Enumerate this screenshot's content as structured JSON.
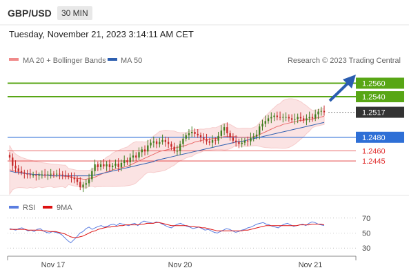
{
  "header": {
    "pair": "GBP/USD",
    "timeframe": "30 MIN"
  },
  "datetime": "Tuesday, November 21, 2023 3:14:11 AM CET",
  "credit": "Research © 2023 Trading Central",
  "legend": {
    "ma20": {
      "label": "MA 20 + Bollinger Bands",
      "color": "#f08a8a"
    },
    "ma50": {
      "label": "MA 50",
      "color": "#2e5fb0"
    }
  },
  "rsi_legend": {
    "rsi": {
      "label": "RSI",
      "color": "#5a7de0"
    },
    "ma": {
      "label": "9MA",
      "color": "#dd1111"
    }
  },
  "colors": {
    "resistance": "#58a615",
    "support": "#e03030",
    "pivot": "#2e6fd6",
    "current": "#333333",
    "up": "#3f7d1e",
    "down": "#c62828",
    "arrow": "#2a5db0"
  },
  "chart_data": [
    {
      "type": "candlestick",
      "ylim": [
        1.2395,
        1.2585
      ],
      "x_ticks": [
        "Nov 17",
        "Nov 20",
        "Nov 21"
      ],
      "levels": [
        {
          "value": 1.256,
          "label": "1.2560",
          "kind": "resistance"
        },
        {
          "value": 1.254,
          "label": "1.2540",
          "kind": "resistance"
        },
        {
          "value": 1.2517,
          "label": "1.2517",
          "kind": "current"
        },
        {
          "value": 1.248,
          "label": "1.2480",
          "kind": "pivot"
        },
        {
          "value": 1.246,
          "label": "1.2460",
          "kind": "support"
        },
        {
          "value": 1.2445,
          "label": "1.2445",
          "kind": "support"
        }
      ],
      "close": [
        1.245,
        1.2438,
        1.2434,
        1.243,
        1.2428,
        1.2426,
        1.2425,
        1.2424,
        1.2424,
        1.2423,
        1.2424,
        1.2425,
        1.2424,
        1.2425,
        1.2426,
        1.2425,
        1.2426,
        1.2425,
        1.2424,
        1.2423,
        1.2422,
        1.242,
        1.2418,
        1.2414,
        1.2406,
        1.241,
        1.2412,
        1.2418,
        1.243,
        1.244,
        1.2436,
        1.244,
        1.2437,
        1.244,
        1.2436,
        1.2438,
        1.2441,
        1.2436,
        1.2442,
        1.2446,
        1.2443,
        1.245,
        1.2453,
        1.245,
        1.2458,
        1.2462,
        1.2459,
        1.2468,
        1.2472,
        1.2474,
        1.247,
        1.2473,
        1.2476,
        1.2473,
        1.247,
        1.2466,
        1.246,
        1.246,
        1.247,
        1.2478,
        1.2483,
        1.2486,
        1.2488,
        1.2485,
        1.2483,
        1.248,
        1.2477,
        1.2474,
        1.2472,
        1.2476,
        1.2475,
        1.2482,
        1.249,
        1.2495,
        1.2486,
        1.248,
        1.2475,
        1.2473,
        1.247,
        1.2472,
        1.2475,
        1.2474,
        1.2479,
        1.2481,
        1.2484,
        1.2496,
        1.25,
        1.2504,
        1.2508,
        1.251,
        1.2512,
        1.251,
        1.2509,
        1.251,
        1.251,
        1.2508,
        1.2506,
        1.2507,
        1.251,
        1.2508,
        1.2505,
        1.2508,
        1.251,
        1.2508,
        1.2514,
        1.2518,
        1.2519,
        1.2517
      ],
      "ma20": [
        1.2432,
        1.2431,
        1.243,
        1.2429,
        1.2428,
        1.2427,
        1.2426,
        1.2426,
        1.2425,
        1.2425,
        1.2425,
        1.2424,
        1.2424,
        1.2424,
        1.2424,
        1.2423,
        1.2423,
        1.2423,
        1.2423,
        1.2422,
        1.2422,
        1.2421,
        1.242,
        1.2419,
        1.2419,
        1.2418,
        1.2418,
        1.2419,
        1.242,
        1.2421,
        1.2423,
        1.2425,
        1.2427,
        1.2429,
        1.243,
        1.2432,
        1.2433,
        1.2434,
        1.2435,
        1.2436,
        1.2437,
        1.2439,
        1.2441,
        1.2443,
        1.2445,
        1.2447,
        1.2449,
        1.2451,
        1.2453,
        1.2455,
        1.2457,
        1.2459,
        1.246,
        1.2461,
        1.2462,
        1.2463,
        1.2464,
        1.2465,
        1.2466,
        1.2467,
        1.2468,
        1.247,
        1.2471,
        1.2473,
        1.2474,
        1.2475,
        1.2476,
        1.2477,
        1.2477,
        1.2478,
        1.2478,
        1.2479,
        1.248,
        1.2481,
        1.2481,
        1.2481,
        1.2481,
        1.2481,
        1.248,
        1.248,
        1.248,
        1.248,
        1.248,
        1.2481,
        1.2482,
        1.2484,
        1.2486,
        1.2488,
        1.249,
        1.2492,
        1.2494,
        1.2496,
        1.2497,
        1.2499,
        1.25,
        1.2501,
        1.2502,
        1.2503,
        1.2504,
        1.2505,
        1.2505,
        1.2506,
        1.2506,
        1.2507,
        1.2508,
        1.2509,
        1.251,
        1.2511
      ],
      "ma50": [
        1.243,
        1.2429,
        1.2428,
        1.2428,
        1.2427,
        1.2427,
        1.2426,
        1.2426,
        1.2425,
        1.2425,
        1.2425,
        1.2424,
        1.2424,
        1.2424,
        1.2423,
        1.2423,
        1.2423,
        1.2423,
        1.2423,
        1.2423,
        1.2423,
        1.2423,
        1.2423,
        1.2423,
        1.2423,
        1.2423,
        1.2423,
        1.2423,
        1.2424,
        1.2424,
        1.2425,
        1.2426,
        1.2427,
        1.2428,
        1.2429,
        1.243,
        1.2431,
        1.2432,
        1.2433,
        1.2434,
        1.2435,
        1.2436,
        1.2437,
        1.2438,
        1.2439,
        1.244,
        1.2441,
        1.2442,
        1.2443,
        1.2444,
        1.2446,
        1.2447,
        1.2448,
        1.2449,
        1.245,
        1.2451,
        1.2452,
        1.2453,
        1.2454,
        1.2455,
        1.2456,
        1.2457,
        1.2458,
        1.2459,
        1.246,
        1.2461,
        1.2462,
        1.2463,
        1.2464,
        1.2465,
        1.2466,
        1.2467,
        1.2468,
        1.2469,
        1.247,
        1.2471,
        1.2472,
        1.2473,
        1.2474,
        1.2474,
        1.2475,
        1.2476,
        1.2477,
        1.2478,
        1.2479,
        1.248,
        1.2481,
        1.2482,
        1.2483,
        1.2484,
        1.2485,
        1.2486,
        1.2487,
        1.2488,
        1.2489,
        1.249,
        1.2491,
        1.2492,
        1.2493,
        1.2494,
        1.2495,
        1.2496,
        1.2497,
        1.2498,
        1.2499,
        1.25,
        1.2501,
        1.2502
      ]
    },
    {
      "type": "line",
      "ylim": [
        20,
        80
      ],
      "y_ticks": [
        70,
        50,
        30
      ],
      "series": [
        {
          "name": "RSI",
          "values": [
            56,
            55,
            54,
            56,
            57,
            55,
            53,
            54,
            52,
            55,
            56,
            53,
            51,
            50,
            52,
            51,
            50,
            48,
            44,
            40,
            37,
            41,
            45,
            50,
            52,
            56,
            58,
            55,
            57,
            59,
            60,
            58,
            59,
            61,
            62,
            60,
            63,
            62,
            61,
            60,
            62,
            63,
            60,
            64,
            66,
            65,
            64,
            63,
            65,
            64,
            62,
            60,
            58,
            57,
            60,
            62,
            63,
            61,
            59,
            58,
            56,
            57,
            58,
            56,
            54,
            55,
            53,
            51,
            50,
            52,
            54,
            56,
            55,
            53,
            51,
            52,
            54,
            55,
            57,
            58,
            60,
            62,
            63,
            64,
            62,
            61,
            59,
            58,
            57,
            60,
            62,
            63,
            61,
            59,
            60,
            61,
            62,
            60,
            63,
            65,
            64,
            62,
            61,
            60
          ]
        },
        {
          "name": "9MA",
          "values": [
            55,
            55,
            55,
            55,
            55,
            55,
            54,
            54,
            54,
            54,
            54,
            53,
            53,
            52,
            52,
            52,
            51,
            50,
            49,
            47,
            45,
            44,
            44,
            45,
            46,
            48,
            50,
            52,
            53,
            55,
            56,
            57,
            58,
            58,
            59,
            59,
            60,
            60,
            61,
            61,
            61,
            61,
            61,
            62,
            62,
            63,
            63,
            63,
            64,
            64,
            63,
            62,
            61,
            60,
            60,
            60,
            60,
            60,
            60,
            59,
            59,
            58,
            58,
            57,
            57,
            56,
            55,
            54,
            53,
            53,
            53,
            53,
            53,
            53,
            53,
            53,
            53,
            54,
            54,
            55,
            56,
            57,
            58,
            59,
            60,
            60,
            60,
            60,
            60,
            60,
            60,
            60,
            60,
            60,
            60,
            61,
            61,
            61,
            61,
            62,
            62,
            62,
            62,
            61
          ]
        }
      ]
    }
  ]
}
